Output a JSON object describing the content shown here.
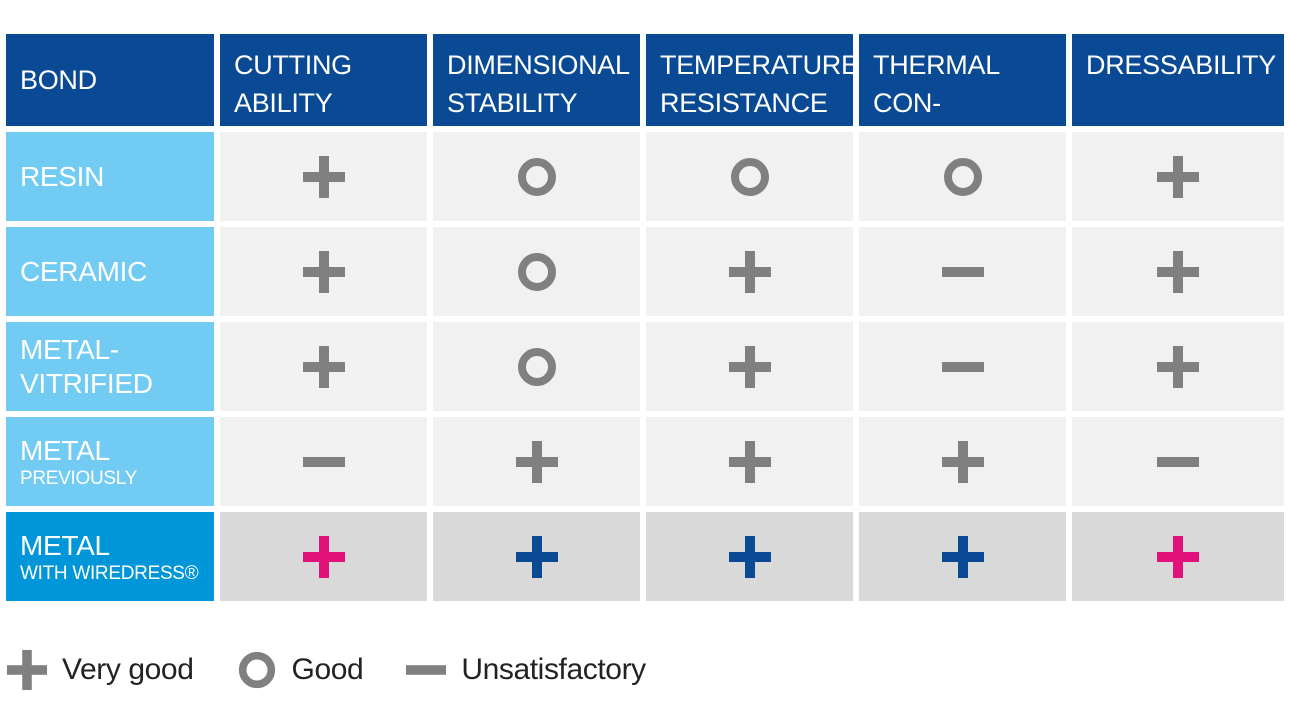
{
  "colors": {
    "header_bg": "#0a4a94",
    "row_label_bg": "#72cbf3",
    "highlight_label_bg": "#0096d9",
    "cell_bg": "#f1f1f1",
    "highlight_cell_bg": "#d9d9d9",
    "gray_symbol": "#808080",
    "pink_symbol": "#e2127a",
    "blue_symbol": "#0a4a94"
  },
  "header": {
    "columns": [
      "BOND",
      "CUTTING\nABILITY",
      "DIMENSIONAL\nSTABILITY",
      "TEMPERATURE\nRESISTANCE",
      "THERMAL CON-\nDUCTIVITY",
      "DRESSABILITY"
    ]
  },
  "rows": [
    {
      "label": "RESIN",
      "sub": "",
      "values": [
        "plus",
        "circle",
        "circle",
        "circle",
        "plus"
      ],
      "colors": [
        "gray",
        "gray",
        "gray",
        "gray",
        "gray"
      ]
    },
    {
      "label": "CERAMIC",
      "sub": "",
      "values": [
        "plus",
        "circle",
        "plus",
        "minus",
        "plus"
      ],
      "colors": [
        "gray",
        "gray",
        "gray",
        "gray",
        "gray"
      ]
    },
    {
      "label": "METAL-\nVITRIFIED",
      "sub": "",
      "values": [
        "plus",
        "circle",
        "plus",
        "minus",
        "plus"
      ],
      "colors": [
        "gray",
        "gray",
        "gray",
        "gray",
        "gray"
      ]
    },
    {
      "label": "METAL",
      "sub": "PREVIOUSLY",
      "values": [
        "minus",
        "plus",
        "plus",
        "plus",
        "minus"
      ],
      "colors": [
        "gray",
        "gray",
        "gray",
        "gray",
        "gray"
      ]
    },
    {
      "label": "METAL",
      "sub": "WITH WIREDRESS®",
      "values": [
        "plus",
        "plus",
        "plus",
        "plus",
        "plus"
      ],
      "colors": [
        "pink",
        "blue",
        "blue",
        "blue",
        "pink"
      ],
      "highlight": true
    }
  ],
  "legend": [
    {
      "symbol": "plus",
      "text": "Very good"
    },
    {
      "symbol": "circle",
      "text": "Good"
    },
    {
      "symbol": "minus",
      "text": "Unsatisfactory"
    }
  ]
}
